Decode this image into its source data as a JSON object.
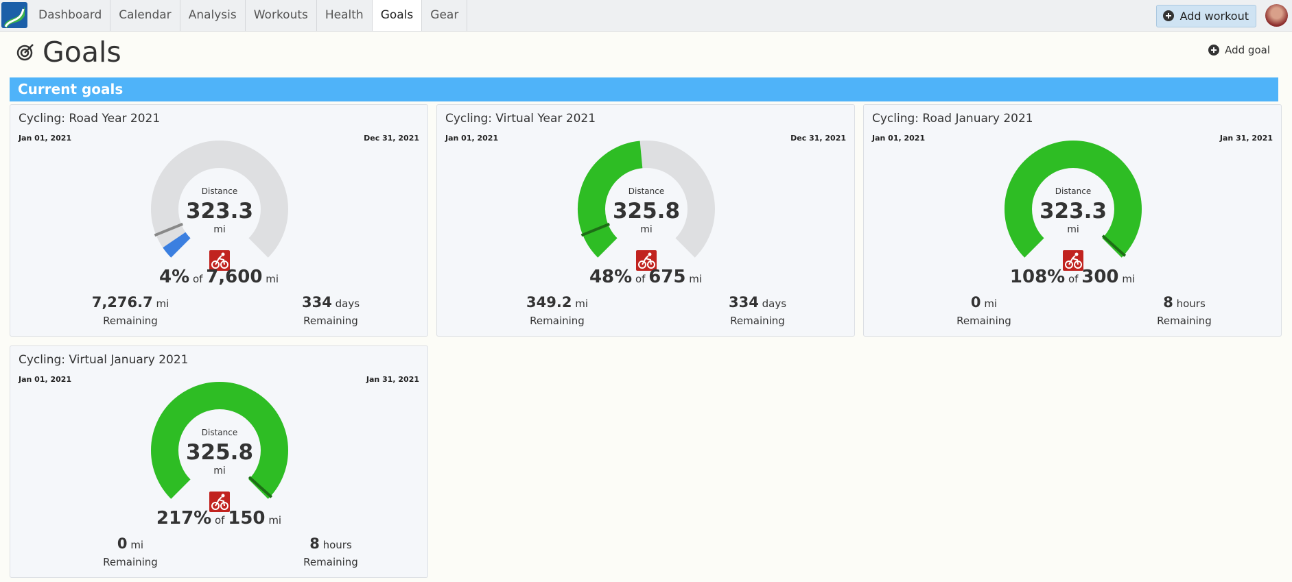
{
  "nav": {
    "items": [
      "Dashboard",
      "Calendar",
      "Analysis",
      "Workouts",
      "Health",
      "Goals",
      "Gear"
    ],
    "add_workout": "Add workout"
  },
  "header": {
    "title": "Goals",
    "add_goal": "Add goal"
  },
  "section": {
    "title": "Current goals"
  },
  "goals": [
    {
      "title": "Cycling: Road Year 2021",
      "start": "Jan 01, 2021",
      "end": "Dec 31, 2021",
      "metric": "Distance",
      "value": "323.3",
      "unit": "mi",
      "percent": {
        "value": 4,
        "label": "4%"
      },
      "of": "of",
      "target": "7,600",
      "target_unit": "mi",
      "remaining_amount": "7,276.7",
      "remaining_unit": "mi",
      "remaining_label": "Remaining",
      "time_amount": "334",
      "time_unit": "days",
      "time_label": "Remaining",
      "elapsed": 8.5,
      "color": "#3b7fe0"
    },
    {
      "title": "Cycling: Virtual Year 2021",
      "start": "Jan 01, 2021",
      "end": "Dec 31, 2021",
      "metric": "Distance",
      "value": "325.8",
      "unit": "mi",
      "percent": {
        "value": 48,
        "label": "48%"
      },
      "of": "of",
      "target": "675",
      "target_unit": "mi",
      "remaining_amount": "349.2",
      "remaining_unit": "mi",
      "remaining_label": "Remaining",
      "time_amount": "334",
      "time_unit": "days",
      "time_label": "Remaining",
      "elapsed": 8.5,
      "color": "#2ebd24"
    },
    {
      "title": "Cycling: Road January 2021",
      "start": "Jan 01, 2021",
      "end": "Jan 31, 2021",
      "metric": "Distance",
      "value": "323.3",
      "unit": "mi",
      "percent": {
        "value": 108,
        "label": "108%"
      },
      "of": "of",
      "target": "300",
      "target_unit": "mi",
      "remaining_amount": "0",
      "remaining_unit": "mi",
      "remaining_label": "Remaining",
      "time_amount": "8",
      "time_unit": "hours",
      "time_label": "Remaining",
      "elapsed": 98.9,
      "color": "#2ebd24"
    },
    {
      "title": "Cycling: Virtual January 2021",
      "start": "Jan 01, 2021",
      "end": "Jan 31, 2021",
      "metric": "Distance",
      "value": "325.8",
      "unit": "mi",
      "percent": {
        "value": 217,
        "label": "217%"
      },
      "of": "of",
      "target": "150",
      "target_unit": "mi",
      "remaining_amount": "0",
      "remaining_unit": "mi",
      "remaining_label": "Remaining",
      "time_amount": "8",
      "time_unit": "hours",
      "time_label": "Remaining",
      "elapsed": 98.9,
      "color": "#2ebd24"
    }
  ]
}
